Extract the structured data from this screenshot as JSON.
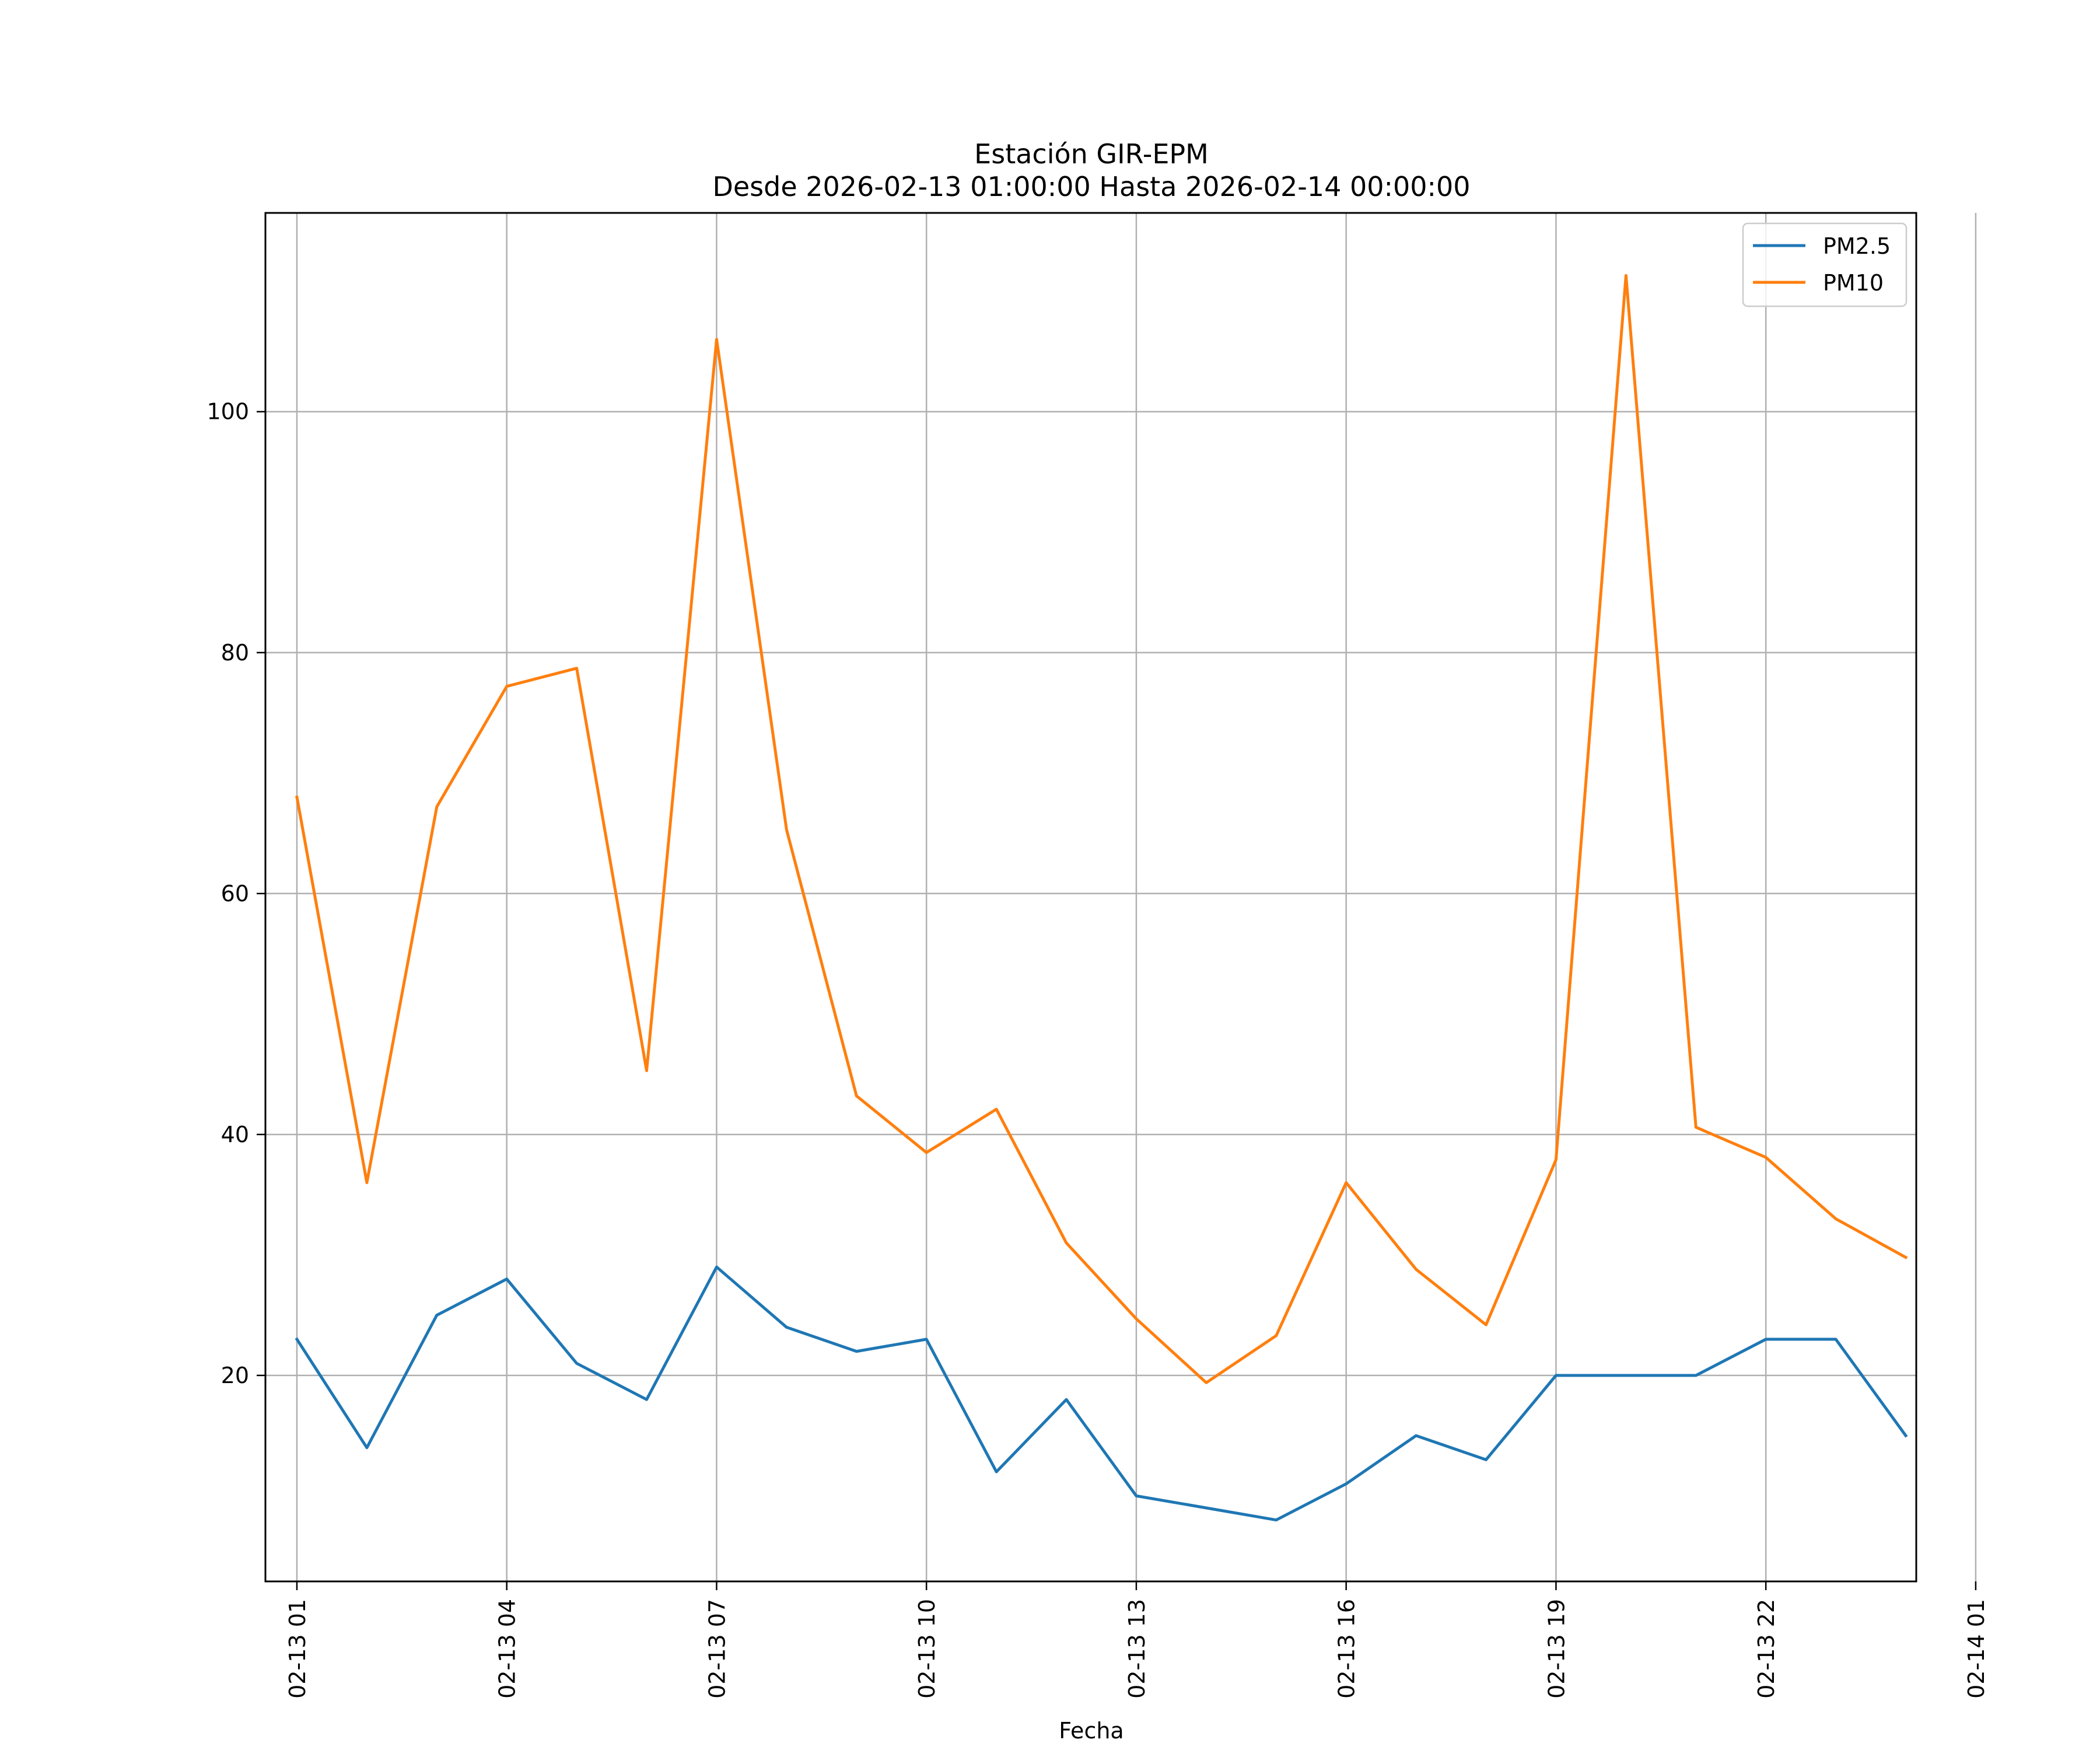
{
  "chart_data": {
    "type": "line",
    "title": "Estación GIR-EPM",
    "subtitle": "Desde 2026-02-13 01:00:00 Hasta 2026-02-14 00:00:00",
    "xlabel": "Fecha",
    "ylabel": "",
    "grid": true,
    "legend_position": "top-right",
    "x_unit": "hour",
    "xlim": [
      0.55,
      24.15
    ],
    "ylim": [
      2.9,
      116.5
    ],
    "x_ticks": [
      {
        "x": 1,
        "label": "02-13 01"
      },
      {
        "x": 4,
        "label": "02-13 04"
      },
      {
        "x": 7,
        "label": "02-13 07"
      },
      {
        "x": 10,
        "label": "02-13 10"
      },
      {
        "x": 13,
        "label": "02-13 13"
      },
      {
        "x": 16,
        "label": "02-13 16"
      },
      {
        "x": 19,
        "label": "02-13 19"
      },
      {
        "x": 22,
        "label": "02-13 22"
      },
      {
        "x": 25,
        "label": "02-14 01"
      }
    ],
    "y_ticks": [
      {
        "y": 20,
        "label": "20"
      },
      {
        "y": 40,
        "label": "40"
      },
      {
        "y": 60,
        "label": "60"
      },
      {
        "y": 80,
        "label": "80"
      },
      {
        "y": 100,
        "label": "100"
      }
    ],
    "x": [
      1,
      2,
      3,
      4,
      5,
      6,
      7,
      8,
      9,
      10,
      11,
      12,
      13,
      14,
      15,
      16,
      17,
      18,
      19,
      20,
      21,
      22,
      23,
      24
    ],
    "series": [
      {
        "name": "PM2.5",
        "color": "#1f77b4",
        "values": [
          23,
          14,
          25,
          28,
          21,
          18,
          29,
          24,
          22,
          23,
          12,
          18,
          10,
          9,
          8,
          11,
          15,
          13,
          20,
          20,
          20,
          23,
          23,
          15
        ]
      },
      {
        "name": "PM10",
        "color": "#ff7f0e",
        "values": [
          68,
          36,
          67.2,
          77.2,
          78.7,
          45.3,
          106,
          65.3,
          43.2,
          38.5,
          42.1,
          31,
          24.7,
          19.4,
          23.3,
          36,
          28.8,
          24.2,
          37.9,
          111.3,
          40.6,
          38.1,
          33,
          29.8
        ]
      }
    ]
  }
}
